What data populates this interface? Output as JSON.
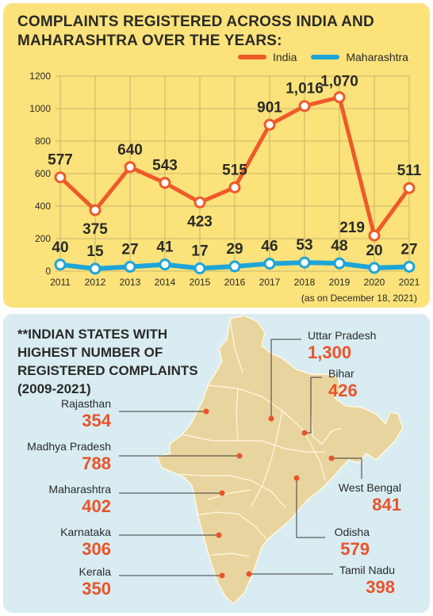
{
  "top": {
    "title_lines": [
      "COMPLAINTS REGISTERED ACROSS INDIA AND",
      "MAHARASHTRA OVER THE YEARS:"
    ],
    "note": "(as on December 18, 2021)"
  },
  "colors": {
    "india": "#ee5a2a",
    "maharashtra": "#1ea5d8",
    "grid": "#b9aa6a",
    "map_fill": "#e8d49e",
    "map_stroke": "#fff8e4",
    "value_orange": "#e8542a"
  },
  "chart_data": {
    "type": "line",
    "x": [
      "2011",
      "2012",
      "2013",
      "2014",
      "2015",
      "2016",
      "2017",
      "2018",
      "2019",
      "2020",
      "2021"
    ],
    "ylim": [
      0,
      1200
    ],
    "yticks": [
      0,
      200,
      400,
      600,
      800,
      1000,
      1200
    ],
    "grid": true,
    "legend_position": "top-right",
    "series": [
      {
        "name": "India",
        "values": [
          577,
          375,
          640,
          543,
          423,
          515,
          901,
          1016,
          1070,
          219,
          511
        ],
        "labels": [
          "577",
          "375",
          "640",
          "543",
          "423",
          "515",
          "901",
          "1,016",
          "1,070",
          "219",
          "511"
        ]
      },
      {
        "name": "Maharashtra",
        "values": [
          40,
          15,
          27,
          41,
          17,
          29,
          46,
          53,
          48,
          20,
          27
        ],
        "labels": [
          "40",
          "15",
          "27",
          "41",
          "17",
          "29",
          "46",
          "53",
          "48",
          "20",
          "27"
        ]
      }
    ]
  },
  "map_section": {
    "title_lines": [
      "**INDIAN STATES WITH",
      "HIGHEST NUMBER OF",
      "REGISTERED COMPLAINTS",
      "(2009-2021)"
    ],
    "states": [
      {
        "name": "Uttar Pradesh",
        "value": "1,300"
      },
      {
        "name": "Bihar",
        "value": "426"
      },
      {
        "name": "Rajasthan",
        "value": "354"
      },
      {
        "name": "Madhya Pradesh",
        "value": "788"
      },
      {
        "name": "West Bengal",
        "value": "841"
      },
      {
        "name": "Maharashtra",
        "value": "402"
      },
      {
        "name": "Odisha",
        "value": "579"
      },
      {
        "name": "Karnataka",
        "value": "306"
      },
      {
        "name": "Tamil Nadu",
        "value": "398"
      },
      {
        "name": "Kerala",
        "value": "350"
      }
    ]
  }
}
